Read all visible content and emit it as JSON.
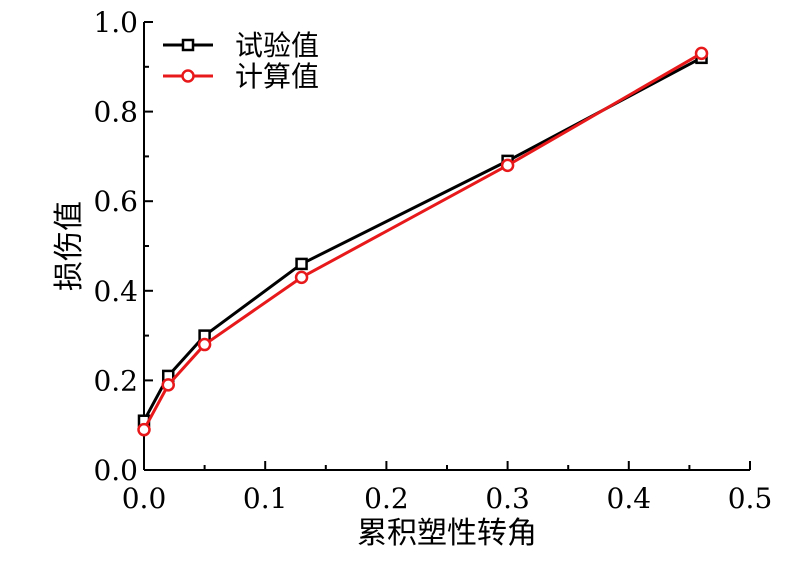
{
  "chart_data": {
    "type": "line",
    "xlabel": "累积塑性转角",
    "ylabel": "损伤值",
    "xlim": [
      0,
      0.5
    ],
    "ylim": [
      0,
      1.0
    ],
    "xticks": [
      "0.0",
      "0.1",
      "0.2",
      "0.3",
      "0.4",
      "0.5"
    ],
    "yticks": [
      "0.0",
      "0.2",
      "0.4",
      "0.6",
      "0.8",
      "1.0"
    ],
    "grid": false,
    "legend_position": "top-left",
    "series": [
      {
        "name": "试验值",
        "color": "#000000",
        "marker": "square",
        "x": [
          0.0,
          0.02,
          0.05,
          0.13,
          0.3,
          0.46
        ],
        "y": [
          0.11,
          0.21,
          0.3,
          0.46,
          0.69,
          0.92
        ]
      },
      {
        "name": "计算值",
        "color": "#e8191b",
        "marker": "circle",
        "x": [
          0.0,
          0.02,
          0.05,
          0.13,
          0.3,
          0.46
        ],
        "y": [
          0.09,
          0.19,
          0.28,
          0.43,
          0.68,
          0.93
        ]
      }
    ]
  }
}
